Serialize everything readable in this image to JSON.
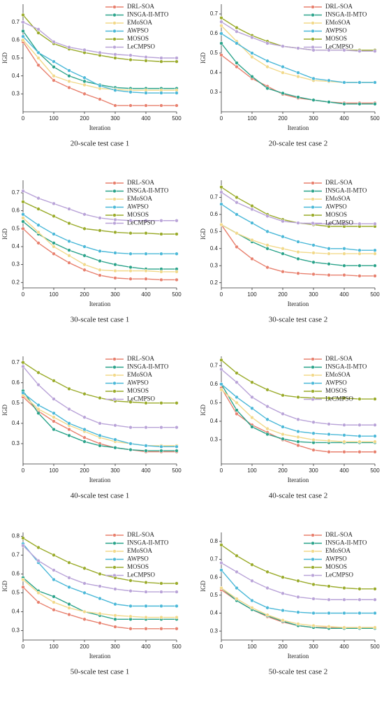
{
  "chart_data": [
    {
      "type": "line",
      "title": "20-scale test case 1",
      "xlabel": "Iteration",
      "ylabel": "IGD",
      "x": [
        0,
        50,
        100,
        150,
        200,
        250,
        300,
        350,
        400,
        450,
        500
      ],
      "xlim": [
        0,
        500
      ],
      "xticks": [
        0,
        100,
        200,
        300,
        400,
        500
      ],
      "ylim": [
        0.2,
        0.8
      ],
      "yticks": [
        0.3,
        0.4,
        0.5,
        0.6,
        0.7
      ],
      "series": [
        {
          "name": "DRL-SOA",
          "color": "#e8806e",
          "values": [
            0.59,
            0.46,
            0.375,
            0.335,
            0.3,
            0.27,
            0.235,
            0.235,
            0.235,
            0.235,
            0.235
          ]
        },
        {
          "name": "INSGA-II-MTO",
          "color": "#2aa38a",
          "values": [
            0.65,
            0.53,
            0.45,
            0.4,
            0.37,
            0.35,
            0.335,
            0.33,
            0.33,
            0.33,
            0.33
          ]
        },
        {
          "name": "EMoSOA",
          "color": "#f2d98a",
          "values": [
            0.6,
            0.5,
            0.4,
            0.37,
            0.35,
            0.33,
            0.325,
            0.32,
            0.32,
            0.32,
            0.32
          ]
        },
        {
          "name": "AWPSO",
          "color": "#4ab8d8",
          "values": [
            0.62,
            0.53,
            0.48,
            0.43,
            0.39,
            0.345,
            0.32,
            0.31,
            0.305,
            0.305,
            0.305
          ]
        },
        {
          "name": "MOSOS",
          "color": "#9aab2a",
          "values": [
            0.74,
            0.64,
            0.58,
            0.55,
            0.53,
            0.515,
            0.5,
            0.49,
            0.485,
            0.48,
            0.48
          ]
        },
        {
          "name": "LeCMPSO",
          "color": "#b9a3d8",
          "values": [
            0.7,
            0.66,
            0.59,
            0.56,
            0.545,
            0.53,
            0.52,
            0.515,
            0.505,
            0.5,
            0.5
          ]
        }
      ]
    },
    {
      "type": "line",
      "title": "20-scale test case 2",
      "xlabel": "Iteration",
      "ylabel": "IGD",
      "x": [
        0,
        50,
        100,
        150,
        200,
        250,
        300,
        350,
        400,
        450,
        500
      ],
      "xlim": [
        0,
        500
      ],
      "xticks": [
        0,
        100,
        200,
        300,
        400,
        500
      ],
      "ylim": [
        0.2,
        0.75
      ],
      "yticks": [
        0.3,
        0.4,
        0.5,
        0.6,
        0.7
      ],
      "series": [
        {
          "name": "DRL-SOA",
          "color": "#e8806e",
          "values": [
            0.49,
            0.43,
            0.37,
            0.33,
            0.29,
            0.27,
            0.26,
            0.25,
            0.245,
            0.245,
            0.245
          ]
        },
        {
          "name": "INSGA-II-MTO",
          "color": "#2aa38a",
          "values": [
            0.55,
            0.45,
            0.38,
            0.32,
            0.295,
            0.275,
            0.26,
            0.25,
            0.24,
            0.24,
            0.24
          ]
        },
        {
          "name": "EMoSOA",
          "color": "#f2d98a",
          "values": [
            0.64,
            0.56,
            0.48,
            0.43,
            0.4,
            0.38,
            0.36,
            0.355,
            0.35,
            0.35,
            0.35
          ]
        },
        {
          "name": "AWPSO",
          "color": "#4ab8d8",
          "values": [
            0.6,
            0.55,
            0.5,
            0.46,
            0.43,
            0.4,
            0.37,
            0.36,
            0.35,
            0.35,
            0.35
          ]
        },
        {
          "name": "MOSOS",
          "color": "#9aab2a",
          "values": [
            0.68,
            0.63,
            0.59,
            0.56,
            0.535,
            0.525,
            0.515,
            0.515,
            0.515,
            0.515,
            0.515
          ]
        },
        {
          "name": "LeCMPSO",
          "color": "#b9a3d8",
          "values": [
            0.66,
            0.61,
            0.58,
            0.55,
            0.535,
            0.525,
            0.515,
            0.515,
            0.515,
            0.51,
            0.51
          ]
        }
      ]
    },
    {
      "type": "line",
      "title": "30-scale test case 1",
      "xlabel": "Iteration",
      "ylabel": "IGD",
      "x": [
        0,
        50,
        100,
        150,
        200,
        250,
        300,
        350,
        400,
        450,
        500
      ],
      "xlim": [
        0,
        500
      ],
      "xticks": [
        0,
        100,
        200,
        300,
        400,
        500
      ],
      "ylim": [
        0.17,
        0.77
      ],
      "yticks": [
        0.2,
        0.3,
        0.4,
        0.5,
        0.6,
        0.7
      ],
      "series": [
        {
          "name": "DRL-SOA",
          "color": "#e8806e",
          "values": [
            0.5,
            0.42,
            0.36,
            0.31,
            0.27,
            0.24,
            0.225,
            0.22,
            0.22,
            0.215,
            0.215
          ]
        },
        {
          "name": "INSGA-II-MTO",
          "color": "#2aa38a",
          "values": [
            0.54,
            0.47,
            0.42,
            0.38,
            0.35,
            0.32,
            0.3,
            0.285,
            0.275,
            0.275,
            0.275
          ]
        },
        {
          "name": "EMoSOA",
          "color": "#f2d98a",
          "values": [
            0.56,
            0.48,
            0.4,
            0.35,
            0.3,
            0.27,
            0.265,
            0.265,
            0.265,
            0.26,
            0.26
          ]
        },
        {
          "name": "AWPSO",
          "color": "#4ab8d8",
          "values": [
            0.58,
            0.52,
            0.47,
            0.43,
            0.4,
            0.375,
            0.365,
            0.36,
            0.36,
            0.36,
            0.36
          ]
        },
        {
          "name": "MOSOS",
          "color": "#9aab2a",
          "values": [
            0.65,
            0.61,
            0.57,
            0.53,
            0.5,
            0.49,
            0.48,
            0.475,
            0.475,
            0.47,
            0.47
          ]
        },
        {
          "name": "LeCMPSO",
          "color": "#b9a3d8",
          "values": [
            0.71,
            0.67,
            0.64,
            0.61,
            0.58,
            0.56,
            0.55,
            0.545,
            0.545,
            0.545,
            0.545
          ]
        }
      ]
    },
    {
      "type": "line",
      "title": "30-scale test case 2",
      "xlabel": "Iteration",
      "ylabel": "IGD",
      "x": [
        0,
        50,
        100,
        150,
        200,
        250,
        300,
        350,
        400,
        450,
        500
      ],
      "xlim": [
        0,
        500
      ],
      "xticks": [
        0,
        100,
        200,
        300,
        400,
        500
      ],
      "ylim": [
        0.17,
        0.8
      ],
      "yticks": [
        0.2,
        0.3,
        0.4,
        0.5,
        0.6,
        0.7
      ],
      "series": [
        {
          "name": "DRL-SOA",
          "color": "#e8806e",
          "values": [
            0.54,
            0.41,
            0.34,
            0.29,
            0.265,
            0.255,
            0.25,
            0.245,
            0.245,
            0.24,
            0.24
          ]
        },
        {
          "name": "INSGA-II-MTO",
          "color": "#2aa38a",
          "values": [
            0.54,
            0.49,
            0.44,
            0.4,
            0.37,
            0.34,
            0.32,
            0.31,
            0.3,
            0.3,
            0.3
          ]
        },
        {
          "name": "EMoSOA",
          "color": "#f2d98a",
          "values": [
            0.54,
            0.49,
            0.45,
            0.42,
            0.4,
            0.38,
            0.375,
            0.37,
            0.37,
            0.37,
            0.37
          ]
        },
        {
          "name": "AWPSO",
          "color": "#4ab8d8",
          "values": [
            0.66,
            0.6,
            0.55,
            0.5,
            0.47,
            0.44,
            0.42,
            0.4,
            0.4,
            0.39,
            0.39
          ]
        },
        {
          "name": "MOSOS",
          "color": "#9aab2a",
          "values": [
            0.76,
            0.7,
            0.65,
            0.6,
            0.57,
            0.55,
            0.54,
            0.53,
            0.53,
            0.53,
            0.53
          ]
        },
        {
          "name": "LeCMPSO",
          "color": "#b9a3d8",
          "values": [
            0.73,
            0.67,
            0.63,
            0.59,
            0.56,
            0.55,
            0.545,
            0.545,
            0.545,
            0.545,
            0.545
          ]
        }
      ]
    },
    {
      "type": "line",
      "title": "40-scale test case 1",
      "xlabel": "Iteration",
      "ylabel": "IGD",
      "x": [
        0,
        50,
        100,
        150,
        200,
        250,
        300,
        350,
        400,
        450,
        500
      ],
      "xlim": [
        0,
        500
      ],
      "xticks": [
        0,
        100,
        200,
        300,
        400,
        500
      ],
      "ylim": [
        0.2,
        0.73
      ],
      "yticks": [
        0.3,
        0.4,
        0.5,
        0.6,
        0.7
      ],
      "series": [
        {
          "name": "DRL-SOA",
          "color": "#e8806e",
          "values": [
            0.53,
            0.46,
            0.41,
            0.37,
            0.33,
            0.3,
            0.28,
            0.27,
            0.26,
            0.26,
            0.26
          ]
        },
        {
          "name": "INSGA-II-MTO",
          "color": "#2aa38a",
          "values": [
            0.56,
            0.45,
            0.37,
            0.34,
            0.31,
            0.29,
            0.28,
            0.27,
            0.265,
            0.265,
            0.265
          ]
        },
        {
          "name": "EMoSOA",
          "color": "#f2d98a",
          "values": [
            0.54,
            0.47,
            0.43,
            0.39,
            0.36,
            0.33,
            0.31,
            0.3,
            0.29,
            0.29,
            0.29
          ]
        },
        {
          "name": "AWPSO",
          "color": "#4ab8d8",
          "values": [
            0.55,
            0.49,
            0.45,
            0.4,
            0.37,
            0.34,
            0.32,
            0.3,
            0.29,
            0.285,
            0.285
          ]
        },
        {
          "name": "MOSOS",
          "color": "#9aab2a",
          "values": [
            0.7,
            0.65,
            0.61,
            0.57,
            0.545,
            0.525,
            0.51,
            0.505,
            0.5,
            0.5,
            0.5
          ]
        },
        {
          "name": "LeCMPSO",
          "color": "#b9a3d8",
          "values": [
            0.68,
            0.59,
            0.52,
            0.47,
            0.43,
            0.4,
            0.39,
            0.38,
            0.38,
            0.38,
            0.38
          ]
        }
      ]
    },
    {
      "type": "line",
      "title": "40-scale test case 2",
      "xlabel": "Iteration",
      "ylabel": "IGD",
      "x": [
        0,
        50,
        100,
        150,
        200,
        250,
        300,
        350,
        400,
        450,
        500
      ],
      "xlim": [
        0,
        500
      ],
      "xticks": [
        0,
        100,
        200,
        300,
        400,
        500
      ],
      "ylim": [
        0.17,
        0.75
      ],
      "yticks": [
        0.3,
        0.4,
        0.5,
        0.6,
        0.7
      ],
      "series": [
        {
          "name": "DRL-SOA",
          "color": "#e8806e",
          "values": [
            0.58,
            0.44,
            0.38,
            0.34,
            0.3,
            0.27,
            0.245,
            0.235,
            0.235,
            0.235,
            0.235
          ]
        },
        {
          "name": "INSGA-II-MTO",
          "color": "#2aa38a",
          "values": [
            0.6,
            0.46,
            0.37,
            0.33,
            0.305,
            0.29,
            0.285,
            0.285,
            0.285,
            0.285,
            0.285
          ]
        },
        {
          "name": "EMoSOA",
          "color": "#f2d98a",
          "values": [
            0.57,
            0.5,
            0.42,
            0.36,
            0.33,
            0.315,
            0.3,
            0.295,
            0.29,
            0.29,
            0.29
          ]
        },
        {
          "name": "AWPSO",
          "color": "#4ab8d8",
          "values": [
            0.6,
            0.53,
            0.47,
            0.41,
            0.37,
            0.345,
            0.335,
            0.33,
            0.325,
            0.32,
            0.32
          ]
        },
        {
          "name": "MOSOS",
          "color": "#9aab2a",
          "values": [
            0.73,
            0.66,
            0.61,
            0.57,
            0.54,
            0.53,
            0.525,
            0.525,
            0.525,
            0.52,
            0.52
          ]
        },
        {
          "name": "LeCMPSO",
          "color": "#b9a3d8",
          "values": [
            0.68,
            0.61,
            0.53,
            0.48,
            0.44,
            0.41,
            0.395,
            0.385,
            0.38,
            0.38,
            0.38
          ]
        }
      ]
    },
    {
      "type": "line",
      "title": "50-scale test case 1",
      "xlabel": "Iteration",
      "ylabel": "IGD",
      "x": [
        0,
        50,
        100,
        150,
        200,
        250,
        300,
        350,
        400,
        450,
        500
      ],
      "xlim": [
        0,
        500
      ],
      "xticks": [
        0,
        100,
        200,
        300,
        400,
        500
      ],
      "ylim": [
        0.25,
        0.82
      ],
      "yticks": [
        0.3,
        0.4,
        0.5,
        0.6,
        0.7,
        0.8
      ],
      "series": [
        {
          "name": "DRL-SOA",
          "color": "#e8806e",
          "values": [
            0.53,
            0.45,
            0.41,
            0.385,
            0.36,
            0.34,
            0.32,
            0.31,
            0.31,
            0.31,
            0.31
          ]
        },
        {
          "name": "INSGA-II-MTO",
          "color": "#2aa38a",
          "values": [
            0.58,
            0.51,
            0.48,
            0.44,
            0.4,
            0.38,
            0.36,
            0.36,
            0.36,
            0.36,
            0.36
          ]
        },
        {
          "name": "EMoSOA",
          "color": "#f2d98a",
          "values": [
            0.57,
            0.5,
            0.45,
            0.42,
            0.4,
            0.39,
            0.38,
            0.375,
            0.37,
            0.37,
            0.37
          ]
        },
        {
          "name": "AWPSO",
          "color": "#4ab8d8",
          "values": [
            0.76,
            0.66,
            0.57,
            0.53,
            0.5,
            0.47,
            0.44,
            0.43,
            0.43,
            0.43,
            0.43
          ]
        },
        {
          "name": "MOSOS",
          "color": "#9aab2a",
          "values": [
            0.79,
            0.74,
            0.7,
            0.66,
            0.63,
            0.6,
            0.58,
            0.565,
            0.555,
            0.55,
            0.55
          ]
        },
        {
          "name": "LeCMPSO",
          "color": "#b9a3d8",
          "values": [
            0.75,
            0.67,
            0.62,
            0.58,
            0.55,
            0.535,
            0.52,
            0.51,
            0.505,
            0.505,
            0.505
          ]
        }
      ]
    },
    {
      "type": "line",
      "title": "50-scale test case 2",
      "xlabel": "Iteration",
      "ylabel": "IGD",
      "x": [
        0,
        50,
        100,
        150,
        200,
        250,
        300,
        350,
        400,
        450,
        500
      ],
      "xlim": [
        0,
        500
      ],
      "xticks": [
        0,
        100,
        200,
        300,
        400,
        500
      ],
      "ylim": [
        0.25,
        0.85
      ],
      "yticks": [
        0.3,
        0.4,
        0.5,
        0.6,
        0.7,
        0.8
      ],
      "series": [
        {
          "name": "DRL-SOA",
          "color": "#e8806e",
          "values": [
            0.53,
            0.47,
            0.42,
            0.38,
            0.35,
            0.33,
            0.32,
            0.32,
            0.32,
            0.32,
            0.32
          ]
        },
        {
          "name": "INSGA-II-MTO",
          "color": "#2aa38a",
          "values": [
            0.54,
            0.47,
            0.42,
            0.385,
            0.355,
            0.33,
            0.32,
            0.315,
            0.315,
            0.315,
            0.315
          ]
        },
        {
          "name": "EMoSOA",
          "color": "#f2d98a",
          "values": [
            0.54,
            0.48,
            0.43,
            0.39,
            0.36,
            0.34,
            0.33,
            0.325,
            0.32,
            0.32,
            0.32
          ]
        },
        {
          "name": "AWPSO",
          "color": "#4ab8d8",
          "values": [
            0.64,
            0.54,
            0.47,
            0.43,
            0.415,
            0.405,
            0.4,
            0.4,
            0.4,
            0.4,
            0.4
          ]
        },
        {
          "name": "MOSOS",
          "color": "#9aab2a",
          "values": [
            0.78,
            0.72,
            0.67,
            0.63,
            0.6,
            0.58,
            0.56,
            0.55,
            0.54,
            0.535,
            0.535
          ]
        },
        {
          "name": "LeCMPSO",
          "color": "#b9a3d8",
          "values": [
            0.68,
            0.63,
            0.58,
            0.54,
            0.51,
            0.49,
            0.48,
            0.475,
            0.475,
            0.475,
            0.475
          ]
        }
      ]
    }
  ]
}
